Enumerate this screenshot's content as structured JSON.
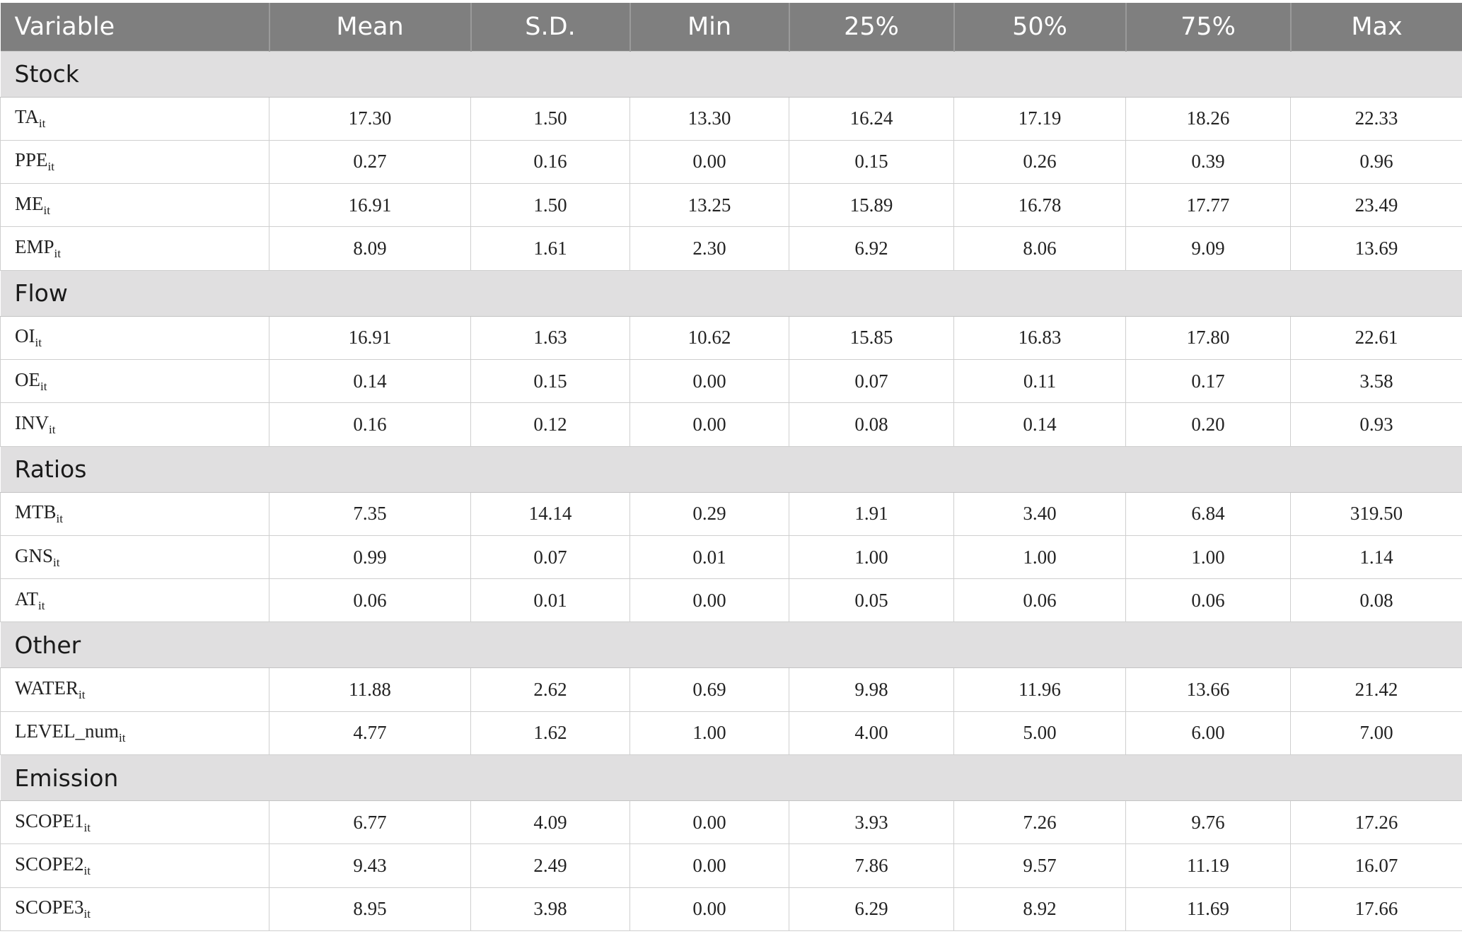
{
  "table": {
    "headers": [
      "Variable",
      "Mean",
      "S.D.",
      "Min",
      "25%",
      "50%",
      "75%",
      "Max"
    ],
    "sections": [
      {
        "title": "Stock",
        "rows": [
          {
            "var": "TA",
            "sub": "it",
            "values": [
              "17.30",
              "1.50",
              "13.30",
              "16.24",
              "17.19",
              "18.26",
              "22.33"
            ]
          },
          {
            "var": "PPE",
            "sub": "it",
            "values": [
              "0.27",
              "0.16",
              "0.00",
              "0.15",
              "0.26",
              "0.39",
              "0.96"
            ]
          },
          {
            "var": "ME",
            "sub": "it",
            "values": [
              "16.91",
              "1.50",
              "13.25",
              "15.89",
              "16.78",
              "17.77",
              "23.49"
            ]
          },
          {
            "var": "EMP",
            "sub": "it",
            "values": [
              "8.09",
              "1.61",
              "2.30",
              "6.92",
              "8.06",
              "9.09",
              "13.69"
            ]
          }
        ]
      },
      {
        "title": "Flow",
        "rows": [
          {
            "var": "OI",
            "sub": "it",
            "values": [
              "16.91",
              "1.63",
              "10.62",
              "15.85",
              "16.83",
              "17.80",
              "22.61"
            ]
          },
          {
            "var": "OE",
            "sub": "it",
            "values": [
              "0.14",
              "0.15",
              "0.00",
              "0.07",
              "0.11",
              "0.17",
              "3.58"
            ]
          },
          {
            "var": "INV",
            "sub": "it",
            "values": [
              "0.16",
              "0.12",
              "0.00",
              "0.08",
              "0.14",
              "0.20",
              "0.93"
            ]
          }
        ]
      },
      {
        "title": "Ratios",
        "rows": [
          {
            "var": "MTB",
            "sub": "it",
            "values": [
              "7.35",
              "14.14",
              "0.29",
              "1.91",
              "3.40",
              "6.84",
              "319.50"
            ]
          },
          {
            "var": "GNS",
            "sub": "it",
            "values": [
              "0.99",
              "0.07",
              "0.01",
              "1.00",
              "1.00",
              "1.00",
              "1.14"
            ]
          },
          {
            "var": "AT",
            "sub": "it",
            "values": [
              "0.06",
              "0.01",
              "0.00",
              "0.05",
              "0.06",
              "0.06",
              "0.08"
            ]
          }
        ]
      },
      {
        "title": "Other",
        "rows": [
          {
            "var": "WATER",
            "sub": "it",
            "values": [
              "11.88",
              "2.62",
              "0.69",
              "9.98",
              "11.96",
              "13.66",
              "21.42"
            ]
          },
          {
            "var": "LEVEL_num",
            "sub": "it",
            "values": [
              "4.77",
              "1.62",
              "1.00",
              "4.00",
              "5.00",
              "6.00",
              "7.00"
            ]
          }
        ]
      },
      {
        "title": "Emission",
        "rows": [
          {
            "var": "SCOPE1",
            "sub": "it",
            "values": [
              "6.77",
              "4.09",
              "0.00",
              "3.93",
              "7.26",
              "9.76",
              "17.26"
            ]
          },
          {
            "var": "SCOPE2",
            "sub": "it",
            "values": [
              "9.43",
              "2.49",
              "0.00",
              "7.86",
              "9.57",
              "11.19",
              "16.07"
            ]
          },
          {
            "var": "SCOPE3",
            "sub": "it",
            "values": [
              "8.95",
              "3.98",
              "0.00",
              "6.29",
              "8.92",
              "11.69",
              "17.66"
            ]
          }
        ]
      }
    ]
  }
}
